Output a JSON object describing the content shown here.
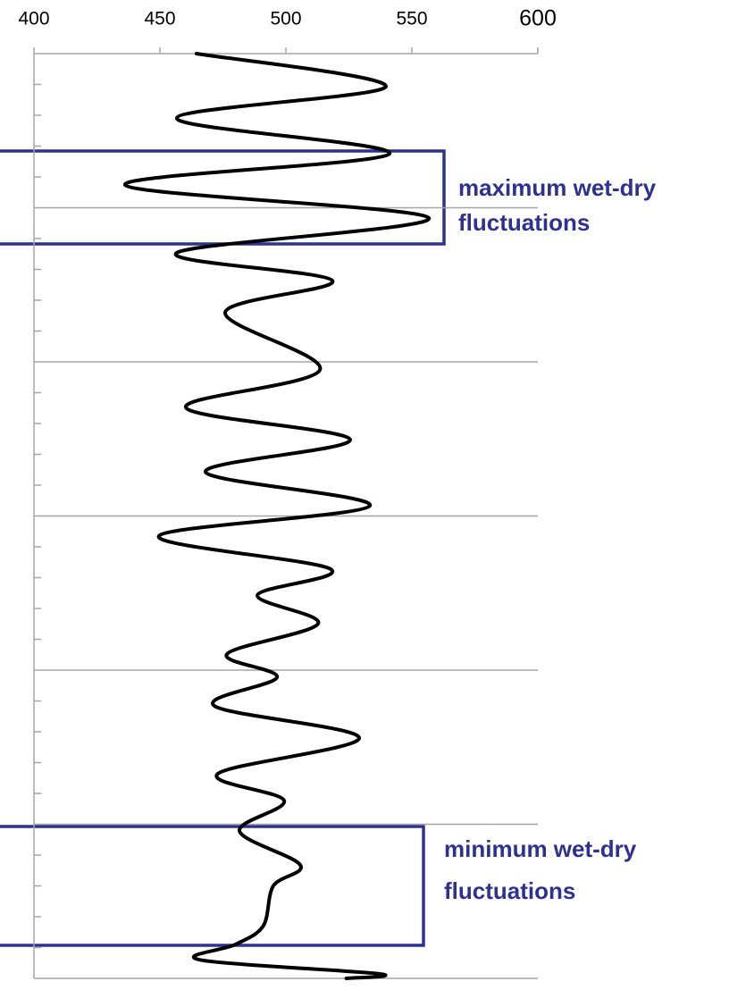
{
  "chart_data": {
    "type": "line",
    "xlim": [
      400,
      600
    ],
    "xticks": [
      400,
      450,
      500,
      550,
      600
    ],
    "ylim": [
      0,
      30
    ],
    "yticks": [
      5,
      10,
      15,
      20,
      25,
      30
    ],
    "yminor": [
      1,
      2,
      3,
      4,
      6,
      7,
      8,
      9,
      11,
      12,
      13,
      14,
      16,
      17,
      18,
      19,
      21,
      22,
      23,
      24,
      26,
      27,
      28,
      29
    ],
    "grid": true,
    "color": "#000000",
    "y": [
      0,
      1.07,
      2.1,
      3.25,
      4.26,
      5.33,
      6.46,
      7.36,
      8.4,
      10.26,
      11.48,
      12.52,
      13.57,
      14.67,
      15.65,
      16.72,
      17.57,
      18.49,
      19.48,
      20.23,
      21.16,
      22.2,
      23.36,
      24.23,
      25.22,
      26.32,
      27.0,
      28.3,
      28.9,
      29.4,
      29.85,
      30
    ],
    "values": [
      464.5,
      539.7,
      456.7,
      541.1,
      436.2,
      556.7,
      456.7,
      518.4,
      475.9,
      513.5,
      460.3,
      525.5,
      468.1,
      533.3,
      449.6,
      517.7,
      488.7,
      512.8,
      476.6,
      496.5,
      471.6,
      529.1,
      473.0,
      499.3,
      481.6,
      505.7,
      495.0,
      491.0,
      480.0,
      466.0,
      537.0,
      524.0
    ],
    "annotations": [
      [
        "maximum wet-dry",
        "fluctuations"
      ],
      [
        "minimum wet-dry",
        "fluctuations"
      ]
    ]
  }
}
